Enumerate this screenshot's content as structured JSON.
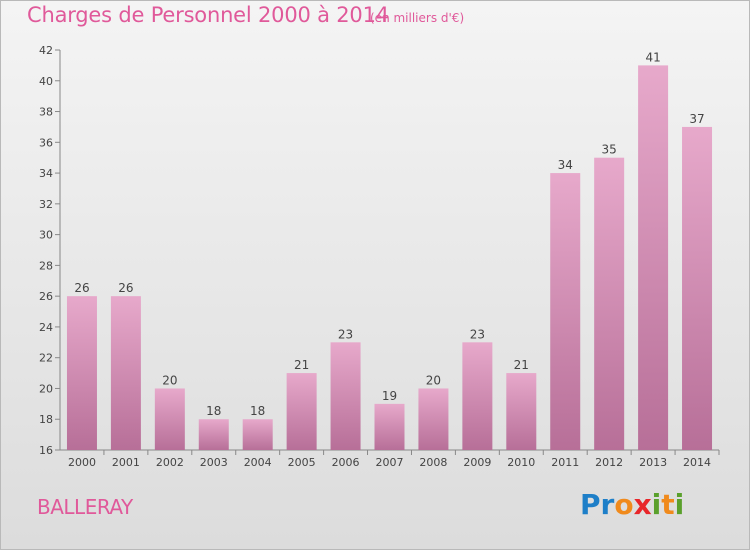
{
  "header": {
    "title": "Charges de Personnel 2000 à 2014",
    "unit_note": "(en milliers d'€)"
  },
  "footer": {
    "commune": "BALLERAY",
    "logo_text": "Proxiti",
    "logo_letters": [
      {
        "char": "P",
        "color": "#1e7fc8"
      },
      {
        "char": "r",
        "color": "#1e7fc8"
      },
      {
        "char": "o",
        "color": "#f08a1c"
      },
      {
        "char": "x",
        "color": "#e8262a"
      },
      {
        "char": "i",
        "color": "#5aa02c"
      },
      {
        "char": "t",
        "color": "#f08a1c"
      },
      {
        "char": "i",
        "color": "#5aa02c"
      }
    ]
  },
  "colors": {
    "title": "#e0599a",
    "bar_light": "#e7a9cb",
    "bar_dark": "#b76f98"
  },
  "chart_data": {
    "type": "bar",
    "title": "Charges de Personnel 2000 à 2014",
    "subtitle": "(en milliers d'€)",
    "categories": [
      "2000",
      "2001",
      "2002",
      "2003",
      "2004",
      "2005",
      "2006",
      "2007",
      "2008",
      "2009",
      "2010",
      "2011",
      "2012",
      "2013",
      "2014"
    ],
    "values": [
      26,
      26,
      20,
      18,
      18,
      21,
      23,
      19,
      20,
      23,
      21,
      34,
      35,
      41,
      37
    ],
    "ylim": [
      16,
      42
    ],
    "yticks": [
      16,
      18,
      20,
      22,
      24,
      26,
      28,
      30,
      32,
      34,
      36,
      38,
      40,
      42
    ],
    "grid": false,
    "legend": "none",
    "data_labels": true
  }
}
